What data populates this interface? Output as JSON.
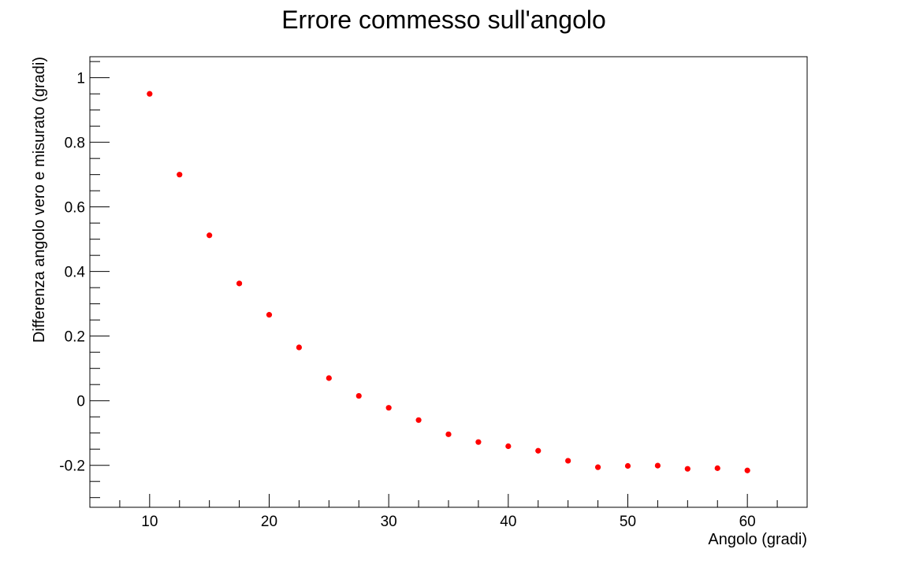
{
  "chart_data": {
    "type": "scatter",
    "title": "Errore commesso sull'angolo",
    "xlabel": "Angolo (gradi)",
    "ylabel": "Differenza angolo vero e misurato (gradi)",
    "xlim": [
      5,
      65
    ],
    "ylim": [
      -0.33,
      1.065
    ],
    "x_ticks": [
      10,
      20,
      30,
      40,
      50,
      60
    ],
    "x_tick_labels": [
      "10",
      "20",
      "30",
      "40",
      "50",
      "60"
    ],
    "y_ticks": [
      -0.2,
      0,
      0.2,
      0.4,
      0.6,
      0.8,
      1
    ],
    "y_tick_labels": [
      "-0.2",
      "0",
      "0.2",
      "0.4",
      "0.6",
      "0.8",
      "1"
    ],
    "grid": false,
    "marker_color": "#ff0000",
    "series": [
      {
        "x": [
          10,
          12.5,
          15,
          17.5,
          20,
          22.5,
          25,
          27.5,
          30,
          32.5,
          35,
          37.5,
          40,
          42.5,
          45,
          47.5,
          50,
          52.5,
          55,
          57.5,
          60
        ],
        "y": [
          0.95,
          0.7,
          0.512,
          0.363,
          0.266,
          0.165,
          0.07,
          0.015,
          -0.022,
          -0.06,
          -0.104,
          -0.128,
          -0.141,
          -0.155,
          -0.186,
          -0.206,
          -0.202,
          -0.201,
          -0.211,
          -0.209,
          -0.216
        ]
      }
    ]
  }
}
